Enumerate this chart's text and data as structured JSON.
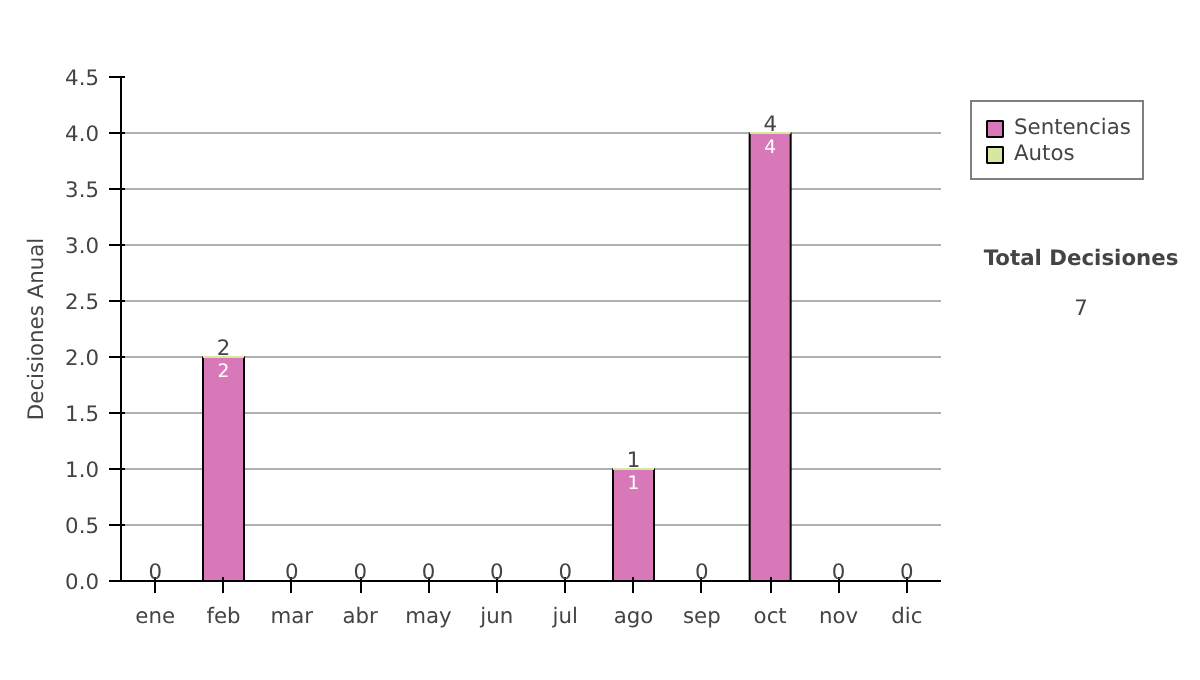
{
  "chart_data": {
    "type": "bar",
    "stacked": true,
    "ylabel": "Decisiones Anual",
    "categories": [
      "ene",
      "feb",
      "mar",
      "abr",
      "may",
      "jun",
      "jul",
      "ago",
      "sep",
      "oct",
      "nov",
      "dic"
    ],
    "series": [
      {
        "name": "Sentencias",
        "color": "#d978b8",
        "values": [
          0,
          2,
          0,
          0,
          0,
          0,
          0,
          1,
          0,
          4,
          0,
          0
        ],
        "value_labels": [
          null,
          "2",
          null,
          null,
          null,
          null,
          null,
          "1",
          null,
          "4",
          null,
          null
        ]
      },
      {
        "name": "Autos",
        "color": "#d6e8a0",
        "values": [
          0,
          0,
          0,
          0,
          0,
          0,
          0,
          0,
          0,
          0,
          0,
          0
        ]
      }
    ],
    "totals": [
      "0",
      "2",
      "0",
      "0",
      "0",
      "0",
      "0",
      "1",
      "0",
      "4",
      "0",
      "0"
    ],
    "ylim": [
      0,
      4.5
    ],
    "yticks": [
      "0.0",
      "0.5",
      "1.0",
      "1.5",
      "2.0",
      "2.5",
      "3.0",
      "3.5",
      "4.0",
      "4.5"
    ],
    "grid": "y",
    "legend": "right",
    "annotations": [
      "Total Decisiones",
      "7"
    ]
  }
}
